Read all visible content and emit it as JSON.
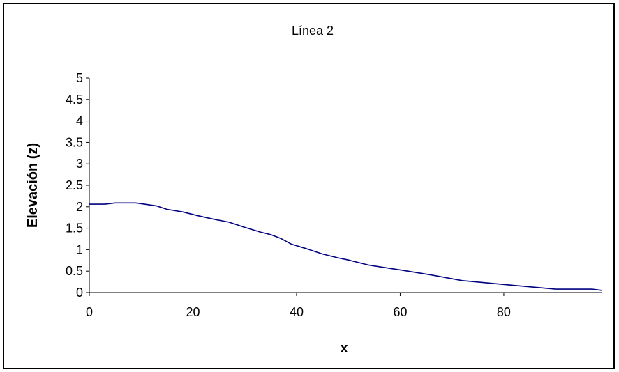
{
  "chart_data": {
    "type": "line",
    "title": "Línea 2",
    "xlabel": "x",
    "ylabel": "Elevación (z)",
    "xlim": [
      0,
      99
    ],
    "ylim": [
      0,
      5
    ],
    "x_ticks": [
      0,
      20,
      40,
      60,
      80
    ],
    "x_tick_labels": [
      "0",
      "20",
      "40",
      "60",
      "80"
    ],
    "y_ticks": [
      0,
      0.5,
      1,
      1.5,
      2,
      2.5,
      3,
      3.5,
      4,
      4.5,
      5
    ],
    "y_tick_labels": [
      "0",
      "0.5",
      "1",
      "1.5",
      "2",
      "2.5",
      "3",
      "3.5",
      "4",
      "4.5",
      "5"
    ],
    "grid": false,
    "legend": "none",
    "series": [
      {
        "color": "#000080",
        "x": [
          0,
          3,
          5,
          9,
          13,
          15,
          18,
          21,
          24,
          27,
          30,
          33,
          35,
          37,
          39,
          42,
          45,
          48,
          50,
          54,
          60,
          66,
          72,
          80,
          90,
          97,
          99
        ],
        "y": [
          2.06,
          2.06,
          2.09,
          2.09,
          2.02,
          1.94,
          1.88,
          1.79,
          1.71,
          1.64,
          1.52,
          1.41,
          1.35,
          1.26,
          1.13,
          1.02,
          0.9,
          0.81,
          0.76,
          0.64,
          0.53,
          0.41,
          0.28,
          0.19,
          0.08,
          0.08,
          0.05
        ]
      }
    ]
  }
}
